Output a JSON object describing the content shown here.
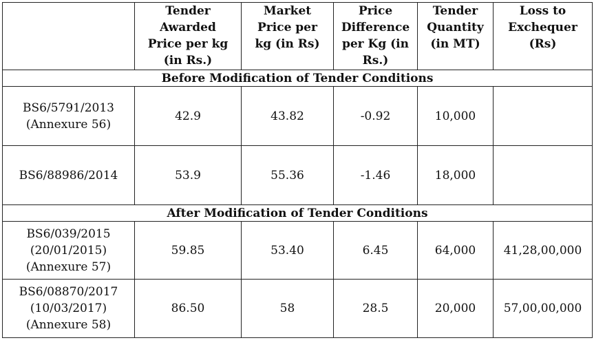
{
  "table": {
    "header": [
      [
        "Tender",
        "Awarded",
        "Price per kg",
        "(in Rs.)"
      ],
      [
        "Market",
        "Price per",
        "kg (in Rs)"
      ],
      [
        "Price",
        "Difference",
        "per Kg (in",
        "Rs.)"
      ],
      [
        "Tender",
        "Quantity",
        "(in MT)"
      ],
      [
        "Loss to",
        "Exchequer",
        "(Rs)"
      ]
    ],
    "sections": [
      {
        "title": "Before Modification of Tender Conditions",
        "rows": [
          {
            "tender": [
              "BS6/5791/2013",
              "(Annexure 56)"
            ],
            "cells": [
              "42.9",
              "43.82",
              "-0.92",
              "10,000"
            ]
          },
          {
            "tender": [
              "BS6/88986/2014"
            ],
            "cells": [
              "53.9",
              "55.36",
              "-1.46",
              "18,000"
            ]
          }
        ]
      },
      {
        "title": "After Modification of Tender Conditions",
        "rows": [
          {
            "tender": [
              "BS6/039/2015",
              "(20/01/2015)",
              "(Annexure 57)"
            ],
            "cells": [
              "59.85",
              "53.40",
              "6.45",
              "64,000",
              "41,28,00,000"
            ]
          },
          {
            "tender": [
              "BS6/08870/2017",
              "(10/03/2017)",
              "(Annexure 58)"
            ],
            "cells": [
              "86.50",
              "58",
              "28.5",
              "20,000",
              "57,00,00,000"
            ]
          }
        ]
      }
    ]
  }
}
